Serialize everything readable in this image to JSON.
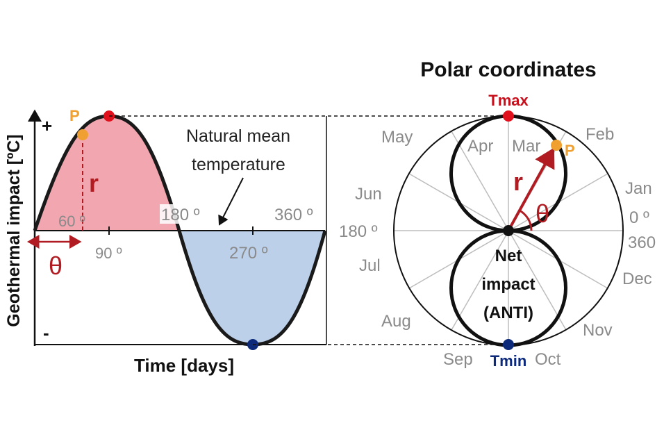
{
  "left_panel": {
    "y_axis_label": "Geothermal impact [ºC]",
    "plus_label": "+",
    "minus_label": "-",
    "x_axis_label": "Time [days]",
    "point_label": "P",
    "r_label": "r",
    "theta_label": "θ",
    "tick_60": "60 º",
    "tick_90": "90 º",
    "tick_180": "180 º",
    "tick_270": "270 º",
    "tick_360": "360 º",
    "annotation_line1": "Natural mean",
    "annotation_line2": "temperature",
    "colors": {
      "positive_fill": "#f2a7b0",
      "negative_fill": "#bcd0ea",
      "curve": "#1a1a1a",
      "max_dot": "#e0101c",
      "min_dot": "#0d2a7a",
      "p_dot": "#f0a030",
      "accent_red": "#b01c22"
    }
  },
  "right_panel": {
    "title": "Polar coordinates",
    "tmax_label": "Tmax",
    "tmin_label": "Tmin",
    "point_label": "P",
    "r_label": "r",
    "theta_label": "θ",
    "angle_180": "180 º",
    "angle_0": "0 º",
    "angle_360": "360",
    "months": {
      "jan": "Jan",
      "feb": "Feb",
      "mar": "Mar",
      "apr": "Apr",
      "may": "May",
      "jun": "Jun",
      "jul": "Jul",
      "aug": "Aug",
      "sep": "Sep",
      "oct": "Oct",
      "nov": "Nov",
      "dec": "Dec"
    },
    "net_line1": "Net",
    "net_line2": "impact",
    "net_line3": "(ANTI)"
  }
}
